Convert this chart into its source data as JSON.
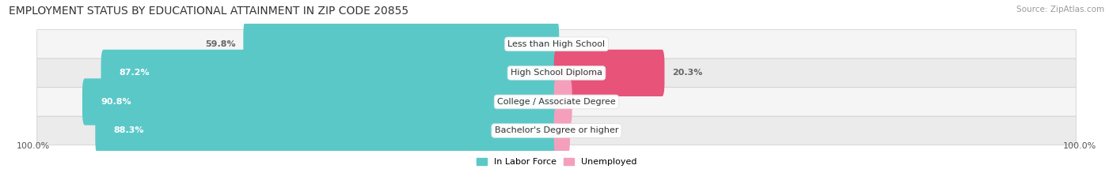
{
  "title": "EMPLOYMENT STATUS BY EDUCATIONAL ATTAINMENT IN ZIP CODE 20855",
  "source": "Source: ZipAtlas.com",
  "categories": [
    "Less than High School",
    "High School Diploma",
    "College / Associate Degree",
    "Bachelor's Degree or higher"
  ],
  "labor_force_pct": [
    59.8,
    87.2,
    90.8,
    88.3
  ],
  "unemployed_pct": [
    0.0,
    20.3,
    2.5,
    2.1
  ],
  "labor_force_color": "#5BC8C8",
  "unemployed_color_high": "#E8537A",
  "unemployed_color_low": "#F4A0BC",
  "row_bg_light": "#F5F5F5",
  "row_bg_dark": "#EBEBEB",
  "axis_left_label": "100.0%",
  "axis_right_label": "100.0%",
  "legend_labor_force": "In Labor Force",
  "legend_unemployed": "Unemployed",
  "title_fontsize": 10,
  "source_fontsize": 7.5,
  "label_fontsize": 8,
  "category_fontsize": 8,
  "background_color": "#FFFFFF",
  "bar_height": 0.62,
  "max_value": 100.0,
  "unemployed_threshold": 10.0
}
